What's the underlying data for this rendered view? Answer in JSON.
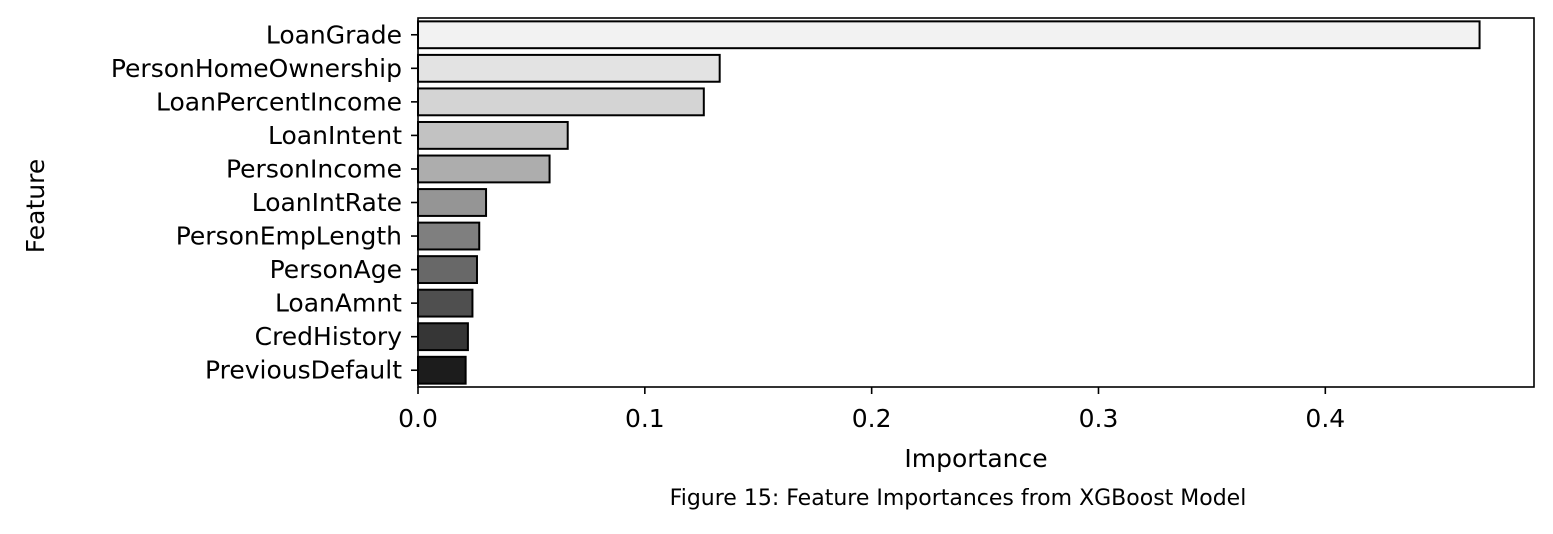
{
  "chart_data": {
    "type": "bar",
    "orientation": "horizontal",
    "categories": [
      "LoanGrade",
      "PersonHomeOwnership",
      "LoanPercentIncome",
      "LoanIntent",
      "PersonIncome",
      "LoanIntRate",
      "PersonEmpLength",
      "PersonAge",
      "LoanAmnt",
      "CredHistory",
      "PreviousDefault"
    ],
    "values": [
      0.468,
      0.133,
      0.126,
      0.066,
      0.058,
      0.03,
      0.027,
      0.026,
      0.024,
      0.022,
      0.021
    ],
    "bar_colors": [
      "#f2f2f2",
      "#e3e3e3",
      "#d4d4d4",
      "#c2c2c2",
      "#adadad",
      "#959595",
      "#7f7f7f",
      "#686868",
      "#4f4f4f",
      "#363636",
      "#1c1c1c"
    ],
    "xlabel": "Importance",
    "ylabel": "Feature",
    "xlim": [
      0.0,
      0.492
    ],
    "xticks": [
      0.0,
      0.1,
      0.2,
      0.3,
      0.4
    ],
    "xtick_labels": [
      "0.0",
      "0.1",
      "0.2",
      "0.3",
      "0.4"
    ],
    "grid": false,
    "legend": "none"
  },
  "caption": "Figure 15: Feature Importances from XGBoost Model"
}
